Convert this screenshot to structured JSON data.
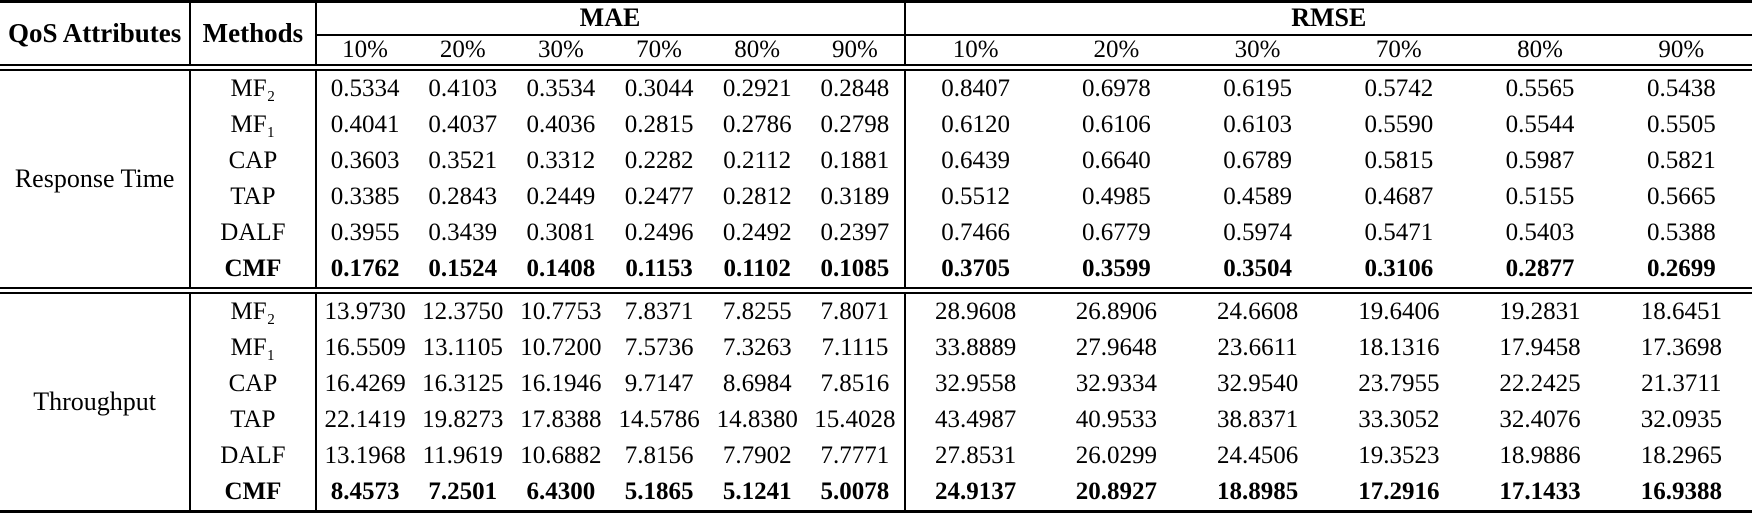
{
  "colors": {
    "text": "#000000",
    "background": "#ffffff",
    "rule": "#000000"
  },
  "table": {
    "corner_headers": {
      "qos": "QoS Attributes",
      "methods": "Methods"
    },
    "group_headers": [
      "MAE",
      "RMSE"
    ],
    "percent_headers": [
      "10%",
      "20%",
      "30%",
      "70%",
      "80%",
      "90%"
    ],
    "sections": [
      {
        "attribute": "Response Time",
        "rows": [
          {
            "method": "MF₂",
            "bold": false,
            "mae": [
              "0.5334",
              "0.4103",
              "0.3534",
              "0.3044",
              "0.2921",
              "0.2848"
            ],
            "rmse": [
              "0.8407",
              "0.6978",
              "0.6195",
              "0.5742",
              "0.5565",
              "0.5438"
            ]
          },
          {
            "method": "MF₁",
            "bold": false,
            "mae": [
              "0.4041",
              "0.4037",
              "0.4036",
              "0.2815",
              "0.2786",
              "0.2798"
            ],
            "rmse": [
              "0.6120",
              "0.6106",
              "0.6103",
              "0.5590",
              "0.5544",
              "0.5505"
            ]
          },
          {
            "method": "CAP",
            "bold": false,
            "mae": [
              "0.3603",
              "0.3521",
              "0.3312",
              "0.2282",
              "0.2112",
              "0.1881"
            ],
            "rmse": [
              "0.6439",
              "0.6640",
              "0.6789",
              "0.5815",
              "0.5987",
              "0.5821"
            ]
          },
          {
            "method": "TAP",
            "bold": false,
            "mae": [
              "0.3385",
              "0.2843",
              "0.2449",
              "0.2477",
              "0.2812",
              "0.3189"
            ],
            "rmse": [
              "0.5512",
              "0.4985",
              "0.4589",
              "0.4687",
              "0.5155",
              "0.5665"
            ]
          },
          {
            "method": "DALF",
            "bold": false,
            "mae": [
              "0.3955",
              "0.3439",
              "0.3081",
              "0.2496",
              "0.2492",
              "0.2397"
            ],
            "rmse": [
              "0.7466",
              "0.6779",
              "0.5974",
              "0.5471",
              "0.5403",
              "0.5388"
            ]
          },
          {
            "method": "CMF",
            "bold": true,
            "mae": [
              "0.1762",
              "0.1524",
              "0.1408",
              "0.1153",
              "0.1102",
              "0.1085"
            ],
            "rmse": [
              "0.3705",
              "0.3599",
              "0.3504",
              "0.3106",
              "0.2877",
              "0.2699"
            ]
          }
        ]
      },
      {
        "attribute": "Throughput",
        "rows": [
          {
            "method": "MF₂",
            "bold": false,
            "mae": [
              "13.9730",
              "12.3750",
              "10.7753",
              "7.8371",
              "7.8255",
              "7.8071"
            ],
            "rmse": [
              "28.9608",
              "26.8906",
              "24.6608",
              "19.6406",
              "19.2831",
              "18.6451"
            ]
          },
          {
            "method": "MF₁",
            "bold": false,
            "mae": [
              "16.5509",
              "13.1105",
              "10.7200",
              "7.5736",
              "7.3263",
              "7.1115"
            ],
            "rmse": [
              "33.8889",
              "27.9648",
              "23.6611",
              "18.1316",
              "17.9458",
              "17.3698"
            ]
          },
          {
            "method": "CAP",
            "bold": false,
            "mae": [
              "16.4269",
              "16.3125",
              "16.1946",
              "9.7147",
              "8.6984",
              "7.8516"
            ],
            "rmse": [
              "32.9558",
              "32.9334",
              "32.9540",
              "23.7955",
              "22.2425",
              "21.3711"
            ]
          },
          {
            "method": "TAP",
            "bold": false,
            "mae": [
              "22.1419",
              "19.8273",
              "17.8388",
              "14.5786",
              "14.8380",
              "15.4028"
            ],
            "rmse": [
              "43.4987",
              "40.9533",
              "38.8371",
              "33.3052",
              "32.4076",
              "32.0935"
            ]
          },
          {
            "method": "DALF",
            "bold": false,
            "mae": [
              "13.1968",
              "11.9619",
              "10.6882",
              "7.8156",
              "7.7902",
              "7.7771"
            ],
            "rmse": [
              "27.8531",
              "26.0299",
              "24.4506",
              "19.3523",
              "18.9886",
              "18.2965"
            ]
          },
          {
            "method": "CMF",
            "bold": true,
            "mae": [
              "8.4573",
              "7.2501",
              "6.4300",
              "5.1865",
              "5.1241",
              "5.0078"
            ],
            "rmse": [
              "24.9137",
              "20.8927",
              "18.8985",
              "17.2916",
              "17.1433",
              "16.9388"
            ]
          }
        ]
      }
    ]
  }
}
